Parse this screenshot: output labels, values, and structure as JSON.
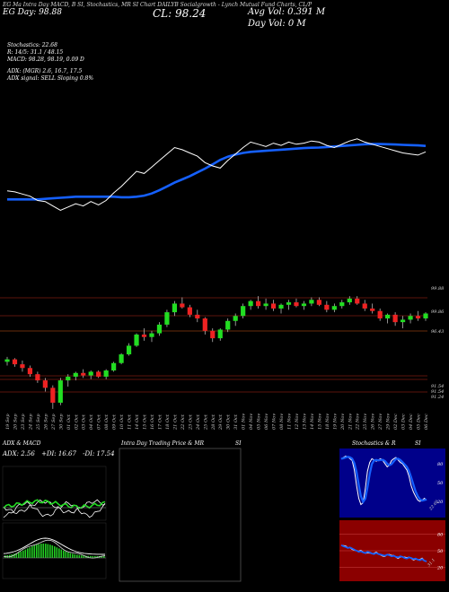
{
  "header": {
    "line1": "EG Ma Intra Day MACD, B SI, Stochastics, MR SI Chart DAILYB Socialgrowth - Lynch Mutual Fund Charts, CL/P",
    "line2": "EG Day: 98.88",
    "close_label": "CL: 98.24",
    "avg_vol": "Avg Vol: 0.391 M",
    "day_vol": "Day Vol: 0  M"
  },
  "info_lines": [
    "Stochastics: 22.68",
    "R: 14/5: 31.1 / 48.15",
    "MACD: 98.28, 98.19, 0.09 D",
    "",
    "ADX: (MGR) 2.6, 16.7, 17.5",
    "ADX signal: SELL Sloping 0.8%"
  ],
  "colors": {
    "background": "#000000",
    "ma_line": "#1560ff",
    "price_line": "#ffffff",
    "bull": "#22dd22",
    "bear": "#ee2222",
    "grid": "#7a1a10",
    "stoch_bg": "#00008a",
    "rsi_bg": "#8b0000"
  },
  "chart_data": {
    "type": "candlestick",
    "price_axis_labels": [
      "99.88",
      "99.86",
      "96.43",
      "91.54",
      "91.54",
      "91.24"
    ],
    "x_dates": [
      "19 Sep",
      "20 Sep",
      "23 Sep",
      "24 Sep",
      "25 Sep",
      "26 Sep",
      "27 Sep",
      "30 Sep",
      "01 Oct",
      "02 Oct",
      "03 Oct",
      "04 Oct",
      "07 Oct",
      "08 Oct",
      "09 Oct",
      "10 Oct",
      "11 Oct",
      "14 Oct",
      "15 Oct",
      "16 Oct",
      "17 Oct",
      "18 Oct",
      "21 Oct",
      "22 Oct",
      "23 Oct",
      "24 Oct",
      "25 Oct",
      "28 Oct",
      "29 Oct",
      "30 Oct",
      "31 Oct",
      "01 Nov",
      "04 Nov",
      "05 Nov",
      "06 Nov",
      "07 Nov",
      "08 Nov",
      "11 Nov",
      "12 Nov",
      "13 Nov",
      "14 Nov",
      "15 Nov",
      "18 Nov",
      "19 Nov",
      "20 Nov",
      "21 Nov",
      "22 Nov",
      "25 Nov",
      "26 Nov",
      "27 Nov",
      "29 Nov",
      "02 Dec",
      "03 Dec",
      "04 Dec",
      "05 Dec",
      "06 Dec"
    ],
    "candles": [
      [
        94.3,
        94.7,
        94.0,
        94.5
      ],
      [
        94.5,
        94.6,
        93.9,
        94.1
      ],
      [
        94.1,
        94.4,
        93.5,
        93.8
      ],
      [
        93.8,
        94.0,
        93.1,
        93.3
      ],
      [
        93.3,
        93.5,
        92.6,
        92.8
      ],
      [
        92.8,
        93.0,
        91.9,
        92.2
      ],
      [
        92.2,
        92.4,
        90.5,
        91.0
      ],
      [
        91.0,
        93.0,
        90.8,
        92.8
      ],
      [
        92.8,
        93.3,
        92.3,
        93.1
      ],
      [
        93.1,
        93.5,
        92.8,
        93.4
      ],
      [
        93.4,
        93.7,
        93.0,
        93.2
      ],
      [
        93.2,
        93.6,
        92.9,
        93.5
      ],
      [
        93.5,
        93.6,
        93.0,
        93.1
      ],
      [
        93.1,
        93.7,
        92.9,
        93.6
      ],
      [
        93.6,
        94.3,
        93.5,
        94.2
      ],
      [
        94.2,
        95.0,
        94.1,
        94.9
      ],
      [
        94.9,
        95.8,
        94.8,
        95.6
      ],
      [
        95.6,
        96.6,
        95.5,
        96.5
      ],
      [
        96.5,
        97.0,
        96.0,
        96.3
      ],
      [
        96.3,
        96.8,
        95.9,
        96.6
      ],
      [
        96.6,
        97.5,
        96.4,
        97.3
      ],
      [
        97.3,
        98.5,
        97.1,
        98.3
      ],
      [
        98.3,
        99.2,
        98.0,
        99.0
      ],
      [
        99.0,
        99.5,
        98.6,
        98.7
      ],
      [
        98.7,
        98.9,
        97.9,
        98.1
      ],
      [
        98.1,
        98.5,
        97.5,
        97.8
      ],
      [
        97.8,
        97.9,
        96.5,
        96.8
      ],
      [
        96.8,
        97.0,
        95.9,
        96.2
      ],
      [
        96.2,
        97.0,
        96.0,
        96.9
      ],
      [
        96.9,
        97.8,
        96.7,
        97.6
      ],
      [
        97.6,
        98.2,
        97.2,
        98.0
      ],
      [
        98.0,
        99.0,
        97.8,
        98.8
      ],
      [
        98.8,
        99.3,
        98.5,
        99.2
      ],
      [
        99.2,
        99.6,
        98.6,
        98.8
      ],
      [
        98.8,
        99.4,
        98.5,
        99.0
      ],
      [
        99.0,
        99.3,
        98.4,
        98.6
      ],
      [
        98.6,
        99.0,
        98.2,
        98.9
      ],
      [
        98.9,
        99.3,
        98.5,
        99.1
      ],
      [
        99.1,
        99.4,
        98.7,
        98.8
      ],
      [
        98.8,
        99.2,
        98.5,
        99.0
      ],
      [
        99.0,
        99.5,
        98.8,
        99.3
      ],
      [
        99.3,
        99.5,
        98.8,
        98.9
      ],
      [
        98.9,
        99.2,
        98.3,
        98.5
      ],
      [
        98.5,
        99.0,
        98.3,
        98.8
      ],
      [
        98.8,
        99.3,
        98.6,
        99.1
      ],
      [
        99.1,
        99.6,
        98.9,
        99.4
      ],
      [
        99.4,
        99.6,
        98.9,
        99.0
      ],
      [
        99.0,
        99.3,
        98.4,
        98.6
      ],
      [
        98.6,
        99.0,
        98.2,
        98.4
      ],
      [
        98.4,
        98.6,
        97.6,
        97.8
      ],
      [
        97.8,
        98.2,
        97.4,
        98.1
      ],
      [
        98.1,
        98.3,
        97.2,
        97.5
      ],
      [
        97.5,
        98.0,
        97.0,
        97.7
      ],
      [
        97.7,
        98.2,
        97.4,
        98.0
      ],
      [
        98.0,
        98.4,
        97.6,
        97.8
      ],
      [
        97.8,
        98.3,
        97.6,
        98.2
      ]
    ],
    "price_series": [
      94.4,
      94.3,
      94.1,
      93.9,
      93.5,
      93.4,
      93.0,
      92.6,
      92.9,
      93.2,
      93.0,
      93.4,
      93.1,
      93.5,
      94.2,
      94.8,
      95.5,
      96.2,
      96.0,
      96.6,
      97.2,
      97.8,
      98.4,
      98.2,
      97.9,
      97.6,
      97.0,
      96.7,
      96.5,
      97.2,
      97.8,
      98.4,
      98.9,
      98.7,
      98.5,
      98.8,
      98.6,
      98.9,
      98.7,
      98.8,
      99.0,
      98.9,
      98.6,
      98.4,
      98.7,
      99.0,
      99.2,
      98.9,
      98.7,
      98.5,
      98.3,
      98.1,
      97.9,
      97.8,
      97.7,
      98.0
    ],
    "ma_series": [
      93.6,
      93.6,
      93.6,
      93.6,
      93.6,
      93.65,
      93.7,
      93.75,
      93.8,
      93.85,
      93.85,
      93.85,
      93.85,
      93.85,
      93.85,
      93.8,
      93.8,
      93.85,
      93.95,
      94.15,
      94.45,
      94.8,
      95.15,
      95.45,
      95.75,
      96.1,
      96.45,
      96.85,
      97.25,
      97.55,
      97.75,
      97.9,
      98.0,
      98.05,
      98.1,
      98.15,
      98.2,
      98.25,
      98.3,
      98.35,
      98.38,
      98.4,
      98.45,
      98.5,
      98.55,
      98.6,
      98.65,
      98.7,
      98.72,
      98.72,
      98.7,
      98.68,
      98.65,
      98.62,
      98.6,
      98.55
    ],
    "adx_panel": {
      "title": "ADX  & MACD",
      "adx": "ADX: 2.56",
      "di_plus": "+DI: 16.67",
      "di_minus": "-DI: 17.54"
    },
    "middle_panel": {
      "title": "Intra  Day Trading Price  & MR",
      "title_right": "SI"
    },
    "stoch_panel": {
      "title": "Stochastics & R",
      "title_right": "SI",
      "ticks": [
        "80",
        "50",
        "20"
      ],
      "last": "22.68"
    },
    "rsi_panel": {
      "ticks": [
        "80",
        "50",
        "20"
      ],
      "last": "31.1"
    }
  }
}
